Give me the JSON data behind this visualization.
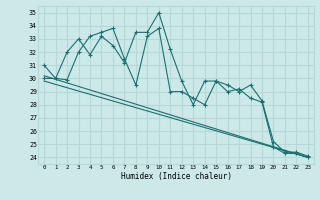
{
  "xlabel": "Humidex (Indice chaleur)",
  "bg_color": "#cce8e8",
  "grid_color": "#b8d8d8",
  "line_color": "#1a7070",
  "xlim": [
    -0.5,
    23.5
  ],
  "ylim": [
    23.5,
    35.5
  ],
  "yticks": [
    24,
    25,
    26,
    27,
    28,
    29,
    30,
    31,
    32,
    33,
    34,
    35
  ],
  "xticks": [
    0,
    1,
    2,
    3,
    4,
    5,
    6,
    7,
    8,
    9,
    10,
    11,
    12,
    13,
    14,
    15,
    16,
    17,
    18,
    19,
    20,
    21,
    22,
    23
  ],
  "series1_x": [
    0,
    1,
    2,
    3,
    4,
    5,
    6,
    7,
    8,
    9,
    10,
    11,
    12,
    13,
    14,
    15,
    16,
    17,
    18,
    19,
    20,
    21,
    22,
    23
  ],
  "series1_y": [
    31.0,
    30.0,
    32.0,
    33.0,
    31.8,
    33.2,
    32.5,
    31.2,
    33.5,
    33.5,
    35.0,
    32.2,
    29.8,
    28.0,
    29.8,
    29.8,
    29.0,
    29.2,
    28.5,
    28.2,
    24.8,
    24.3,
    24.3,
    24.0
  ],
  "series2_x": [
    0,
    1,
    2,
    3,
    4,
    5,
    6,
    7,
    8,
    9,
    10,
    11,
    12,
    13,
    14,
    15,
    16,
    17,
    18,
    19,
    20,
    21,
    22,
    23
  ],
  "series2_y": [
    30.0,
    30.0,
    29.9,
    32.0,
    33.2,
    33.5,
    33.8,
    31.5,
    29.5,
    33.2,
    33.8,
    29.0,
    29.0,
    28.5,
    28.0,
    29.8,
    29.5,
    29.0,
    29.5,
    28.3,
    25.2,
    24.4,
    24.4,
    24.1
  ],
  "series3_x": [
    0,
    23
  ],
  "series3_y": [
    30.2,
    24.0
  ],
  "series4_x": [
    0,
    23
  ],
  "series4_y": [
    29.8,
    24.0
  ]
}
